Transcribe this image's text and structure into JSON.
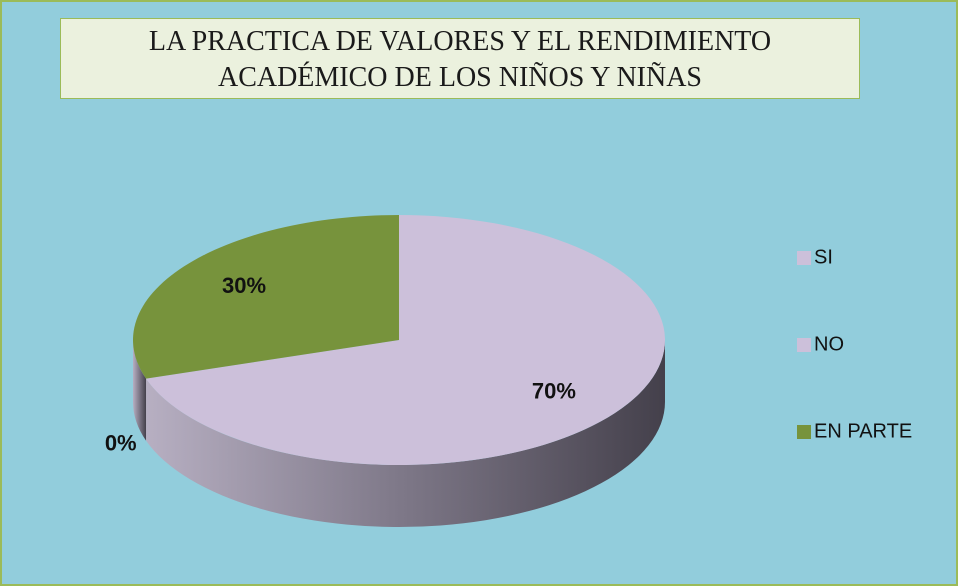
{
  "chart_data": {
    "type": "pie3d",
    "title": "LA PRACTICA DE VALORES Y EL RENDIMIENTO ACADÉMICO DE LOS NIÑOS Y NIÑAS",
    "categories": [
      "SI",
      "NO",
      "EN PARTE"
    ],
    "values": [
      70,
      0,
      30
    ],
    "value_labels": [
      "70%",
      "0%",
      "30%"
    ],
    "colors": [
      "#ccc0da",
      "#ccc0da",
      "#77933c"
    ],
    "legend": "right"
  }
}
